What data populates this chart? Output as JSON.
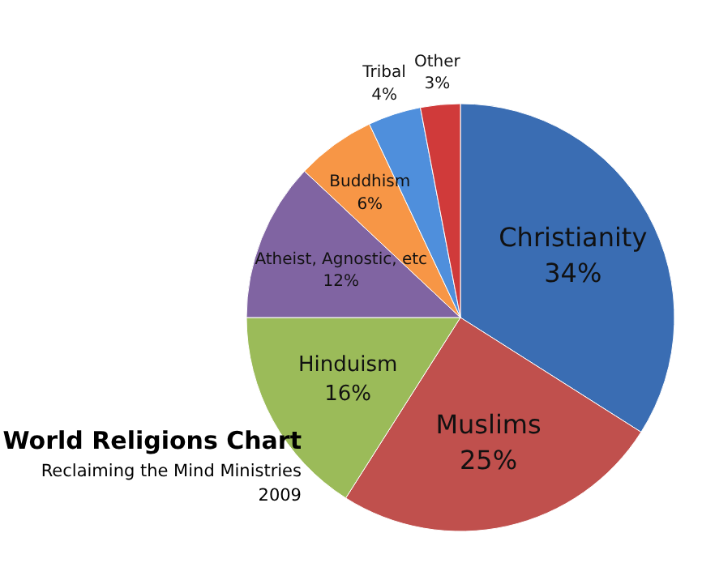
{
  "chart_data": {
    "type": "pie",
    "title": "World Religions Chart",
    "subtitle": "Reclaiming the Mind Ministries",
    "annotations": [
      "2009"
    ],
    "categories": [
      "Christianity",
      "Muslims",
      "Hinduism",
      "Atheist, Agnostic, etc",
      "Buddhism",
      "Tribal",
      "Other"
    ],
    "values": [
      34,
      25,
      16,
      12,
      6,
      4,
      3
    ],
    "value_labels": [
      "34%",
      "25%",
      "16%",
      "12%",
      "6%",
      "4%",
      "3%"
    ],
    "colors": [
      "#3a6db3",
      "#c0504d",
      "#9bbb59",
      "#8064a2",
      "#f79646",
      "#4f8fdc",
      "#d03a3a"
    ]
  }
}
